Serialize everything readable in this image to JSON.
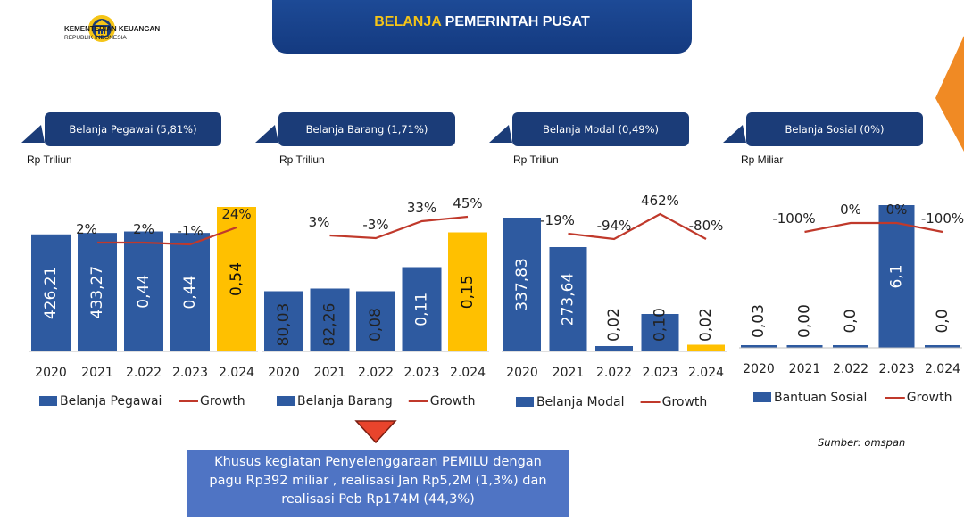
{
  "header": {
    "org_line1": "KEMENTERIAN KEUANGAN",
    "org_line2": "REPUBLIK INDONESIA",
    "title_highlight": "BELANJA",
    "title_rest": " PEMERINTAH PUSAT"
  },
  "colors": {
    "bar": "#2e5aa0",
    "bar_highlight": "#ffc000",
    "growth_line": "#c0392b",
    "pill": "#1b3c78"
  },
  "chart_data": [
    {
      "type": "bar",
      "title": "Belanja Pegawai (5,81%)",
      "unit": "Rp Triliun",
      "categories": [
        "2020",
        "2021",
        "2.022",
        "2.023",
        "2.024"
      ],
      "series": [
        {
          "name": "Belanja Pegawai",
          "values": [
            426.21,
            433.27,
            0.44,
            0.44,
            0.54
          ],
          "labels": [
            "426,21",
            "433,27",
            "0,44",
            "0,44",
            "0,54"
          ]
        },
        {
          "name": "Growth",
          "type": "line",
          "labels": [
            "2%",
            "2%",
            "-1%",
            "24%"
          ]
        }
      ],
      "bar_level": [
        0.81,
        0.82,
        0.83,
        0.82,
        1.0
      ],
      "growth_level": [
        0.82,
        0.82,
        0.8,
        0.99
      ],
      "highlight_index": 4
    },
    {
      "type": "bar",
      "title": "Belanja Barang (1,71%)",
      "unit": "Rp Triliun",
      "categories": [
        "2020",
        "2021",
        "2.022",
        "2.023",
        "2.024"
      ],
      "series": [
        {
          "name": "Belanja Barang",
          "values": [
            80.03,
            82.26,
            0.08,
            0.11,
            0.15
          ],
          "labels": [
            "80,03",
            "82,26",
            "0,08",
            "0,11",
            "0,15"
          ]
        },
        {
          "name": "Growth",
          "type": "line",
          "labels": [
            "3%",
            "-3%",
            "33%",
            "45%"
          ]
        }
      ],
      "bar_level": [
        0.45,
        0.47,
        0.45,
        0.63,
        0.89
      ],
      "growth_level": [
        0.9,
        0.87,
        1.06,
        1.11
      ],
      "highlight_index": 4
    },
    {
      "type": "bar",
      "title": "Belanja Modal (0,49%)",
      "unit": "Rp Triliun",
      "categories": [
        "2020",
        "2021",
        "2.022",
        "2.023",
        "2.024"
      ],
      "series": [
        {
          "name": "Belanja Modal",
          "values": [
            337.83,
            273.64,
            0.02,
            0.1,
            0.02
          ],
          "labels": [
            "337,83",
            "273,64",
            "0,02",
            "0,10",
            "0,02"
          ]
        },
        {
          "name": "Growth",
          "type": "line",
          "labels": [
            "-19%",
            "-94%",
            "462%",
            "-80%"
          ]
        }
      ],
      "bar_level": [
        1.0,
        0.78,
        0.04,
        0.28,
        0.05
      ],
      "growth_level": [
        0.92,
        0.86,
        1.14,
        0.86
      ],
      "highlight_index": 4
    },
    {
      "type": "bar",
      "title": "Belanja Sosial (0%)",
      "unit": "Rp Miliar",
      "categories": [
        "2020",
        "2021",
        "2.022",
        "2.023",
        "2.024"
      ],
      "series": [
        {
          "name": "Bantuan Sosial",
          "values": [
            0.03,
            0.0,
            0.0,
            6.1,
            0.0
          ],
          "labels": [
            "0,03",
            "0,00",
            "0,0",
            "6,1",
            "0,0"
          ]
        },
        {
          "name": "Growth",
          "type": "line",
          "labels": [
            "-100%",
            "0%",
            "0%",
            "-100%"
          ]
        }
      ],
      "bar_level": [
        0.0,
        0.0,
        0.0,
        1.0,
        0.0
      ],
      "growth_level": [
        0.94,
        1.04,
        1.04,
        0.94
      ],
      "highlight_index": -1
    }
  ],
  "footer": {
    "note_lines": [
      "Khusus kegiatan Penyelenggaraan PEMILU dengan",
      "pagu Rp392 miliar , realisasi Jan Rp5,2M (1,3%) dan",
      "realisasi Peb  Rp174M (44,3%)"
    ],
    "source": "Sumber: omspan"
  }
}
